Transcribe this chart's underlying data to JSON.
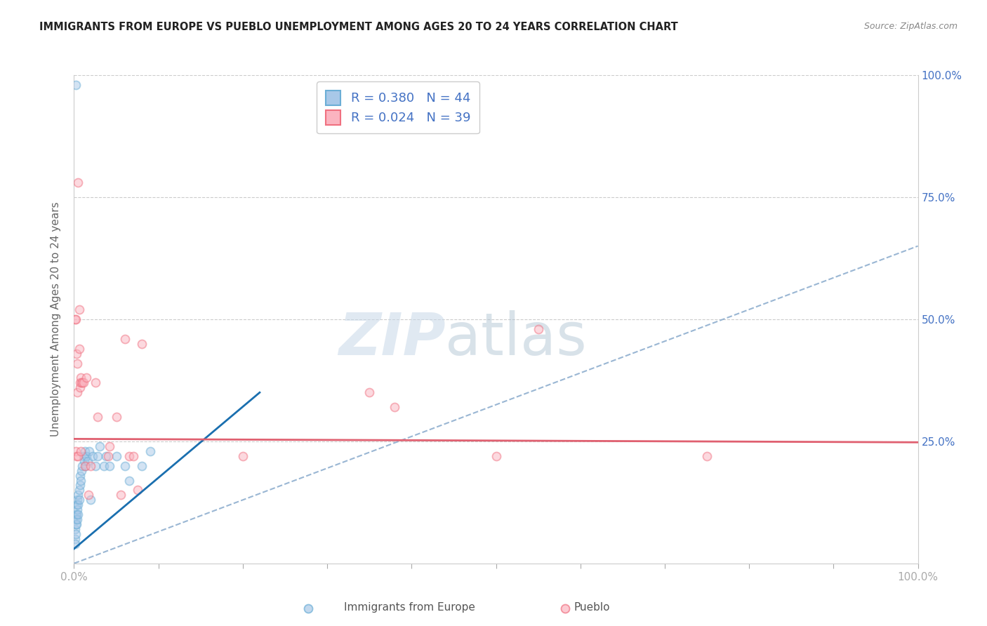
{
  "title": "IMMIGRANTS FROM EUROPE VS PUEBLO UNEMPLOYMENT AMONG AGES 20 TO 24 YEARS CORRELATION CHART",
  "source": "Source: ZipAtlas.com",
  "ylabel": "Unemployment Among Ages 20 to 24 years",
  "xlim": [
    0,
    1.0
  ],
  "ylim": [
    0,
    1.0
  ],
  "ytick_positions": [
    0.25,
    0.5,
    0.75,
    1.0
  ],
  "ytick_labels_right": [
    "25.0%",
    "50.0%",
    "75.0%",
    "100.0%"
  ],
  "legend_label1": "R = 0.380   N = 44",
  "legend_label2": "R = 0.024   N = 39",
  "legend_color1_face": "#a8c8e8",
  "legend_color1_edge": "#6baed6",
  "legend_color2_face": "#fbb4c0",
  "legend_color2_edge": "#f07080",
  "grid_color": "#cccccc",
  "background_color": "#ffffff",
  "blue_scatter": [
    [
      0.001,
      0.05
    ],
    [
      0.001,
      0.07
    ],
    [
      0.002,
      0.06
    ],
    [
      0.002,
      0.08
    ],
    [
      0.002,
      0.1
    ],
    [
      0.002,
      0.09
    ],
    [
      0.003,
      0.08
    ],
    [
      0.003,
      0.1
    ],
    [
      0.003,
      0.12
    ],
    [
      0.004,
      0.11
    ],
    [
      0.004,
      0.13
    ],
    [
      0.004,
      0.09
    ],
    [
      0.005,
      0.12
    ],
    [
      0.005,
      0.14
    ],
    [
      0.005,
      0.1
    ],
    [
      0.006,
      0.15
    ],
    [
      0.006,
      0.13
    ],
    [
      0.007,
      0.16
    ],
    [
      0.007,
      0.18
    ],
    [
      0.008,
      0.17
    ],
    [
      0.009,
      0.19
    ],
    [
      0.01,
      0.2
    ],
    [
      0.011,
      0.22
    ],
    [
      0.012,
      0.21
    ],
    [
      0.013,
      0.23
    ],
    [
      0.014,
      0.2
    ],
    [
      0.015,
      0.22
    ],
    [
      0.016,
      0.21
    ],
    [
      0.018,
      0.23
    ],
    [
      0.02,
      0.13
    ],
    [
      0.022,
      0.22
    ],
    [
      0.025,
      0.2
    ],
    [
      0.028,
      0.22
    ],
    [
      0.03,
      0.24
    ],
    [
      0.035,
      0.2
    ],
    [
      0.038,
      0.22
    ],
    [
      0.042,
      0.2
    ],
    [
      0.05,
      0.22
    ],
    [
      0.06,
      0.2
    ],
    [
      0.065,
      0.17
    ],
    [
      0.08,
      0.2
    ],
    [
      0.09,
      0.23
    ],
    [
      0.002,
      0.98
    ],
    [
      0.001,
      0.04
    ]
  ],
  "pink_scatter": [
    [
      0.001,
      0.5
    ],
    [
      0.002,
      0.5
    ],
    [
      0.002,
      0.23
    ],
    [
      0.003,
      0.22
    ],
    [
      0.003,
      0.43
    ],
    [
      0.004,
      0.41
    ],
    [
      0.004,
      0.35
    ],
    [
      0.005,
      0.22
    ],
    [
      0.005,
      0.78
    ],
    [
      0.006,
      0.52
    ],
    [
      0.006,
      0.44
    ],
    [
      0.007,
      0.36
    ],
    [
      0.007,
      0.37
    ],
    [
      0.008,
      0.23
    ],
    [
      0.008,
      0.38
    ],
    [
      0.009,
      0.37
    ],
    [
      0.01,
      0.37
    ],
    [
      0.011,
      0.37
    ],
    [
      0.013,
      0.2
    ],
    [
      0.015,
      0.38
    ],
    [
      0.017,
      0.14
    ],
    [
      0.02,
      0.2
    ],
    [
      0.025,
      0.37
    ],
    [
      0.028,
      0.3
    ],
    [
      0.04,
      0.22
    ],
    [
      0.042,
      0.24
    ],
    [
      0.05,
      0.3
    ],
    [
      0.055,
      0.14
    ],
    [
      0.06,
      0.46
    ],
    [
      0.065,
      0.22
    ],
    [
      0.07,
      0.22
    ],
    [
      0.075,
      0.15
    ],
    [
      0.08,
      0.45
    ],
    [
      0.2,
      0.22
    ],
    [
      0.35,
      0.35
    ],
    [
      0.38,
      0.32
    ],
    [
      0.5,
      0.22
    ],
    [
      0.55,
      0.48
    ],
    [
      0.75,
      0.22
    ]
  ],
  "blue_line": [
    0.0,
    0.03,
    0.22,
    0.35
  ],
  "blue_dashed_line": [
    0.0,
    0.0,
    1.0,
    0.65
  ],
  "pink_line": [
    0.0,
    0.255,
    1.0,
    0.248
  ],
  "scatter_size": 75,
  "scatter_alpha": 0.5,
  "scatter_linewidth": 1.3,
  "blue_reg_color": "#1a6faf",
  "blue_dashed_color": "#88aacc",
  "pink_reg_color": "#e06070",
  "reg_linewidth": 2.0,
  "reg_dashed_linewidth": 1.5
}
